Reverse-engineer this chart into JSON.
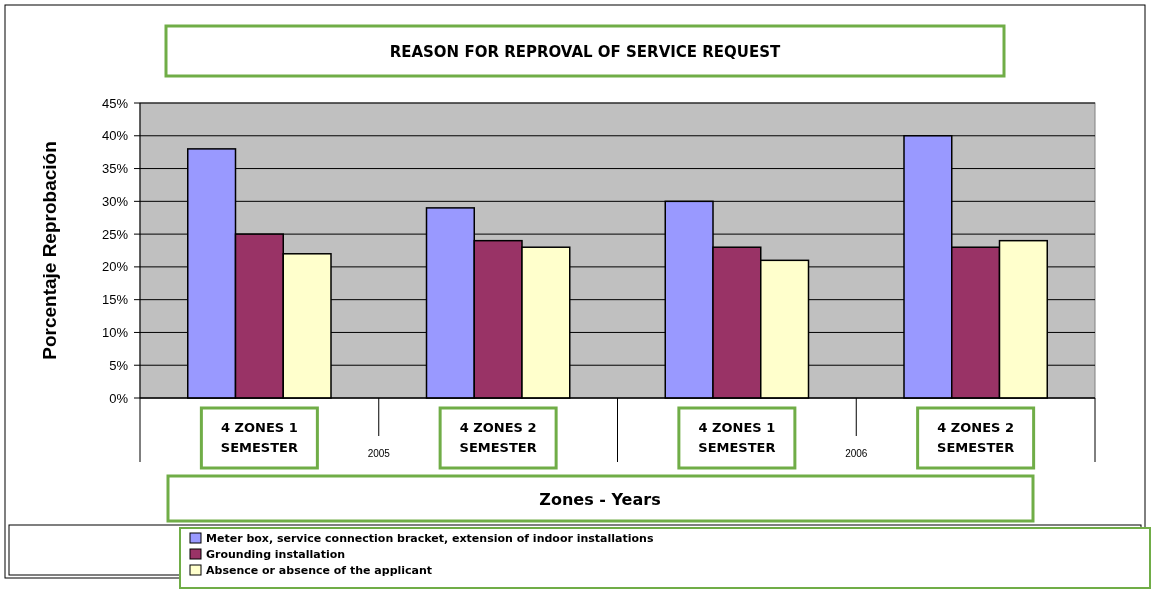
{
  "chart_data": {
    "type": "bar",
    "title": "REASON FOR REPROVAL OF SERVICE REQUEST",
    "xlabel": "Zones - Years",
    "ylabel": "Porcentaje Reprobación",
    "categories": [
      "4 ZONES 1 SEMESTER",
      "4 ZONES 2 SEMESTER",
      "4 ZONES 1 SEMESTER",
      "4 ZONES 2 SEMESTER"
    ],
    "series": [
      {
        "name": "Meter box, service connection bracket, extension of indoor installations",
        "color": "#9999ff",
        "values": [
          38,
          29,
          30,
          40
        ]
      },
      {
        "name": "Grounding installation",
        "color": "#993366",
        "values": [
          25,
          24,
          23,
          23
        ]
      },
      {
        "name": "Absence or absence of the applicant",
        "color": "#ffffcc",
        "values": [
          22,
          23,
          21,
          24
        ]
      }
    ],
    "ylim": [
      0,
      45
    ],
    "yticks": [
      {
        "value": 0,
        "label": "0%"
      },
      {
        "value": 5,
        "label": "5%"
      },
      {
        "value": 10,
        "label": "10%"
      },
      {
        "value": 15,
        "label": "15%"
      },
      {
        "value": 20,
        "label": "20%"
      },
      {
        "value": 25,
        "label": "25%"
      },
      {
        "value": 30,
        "label": "30%"
      },
      {
        "value": 35,
        "label": "35%"
      },
      {
        "value": 40,
        "label": "40%"
      },
      {
        "value": 45,
        "label": "45%"
      }
    ],
    "grid": "y",
    "legend": "bottom",
    "annotations": [
      "2005",
      "2006"
    ]
  }
}
